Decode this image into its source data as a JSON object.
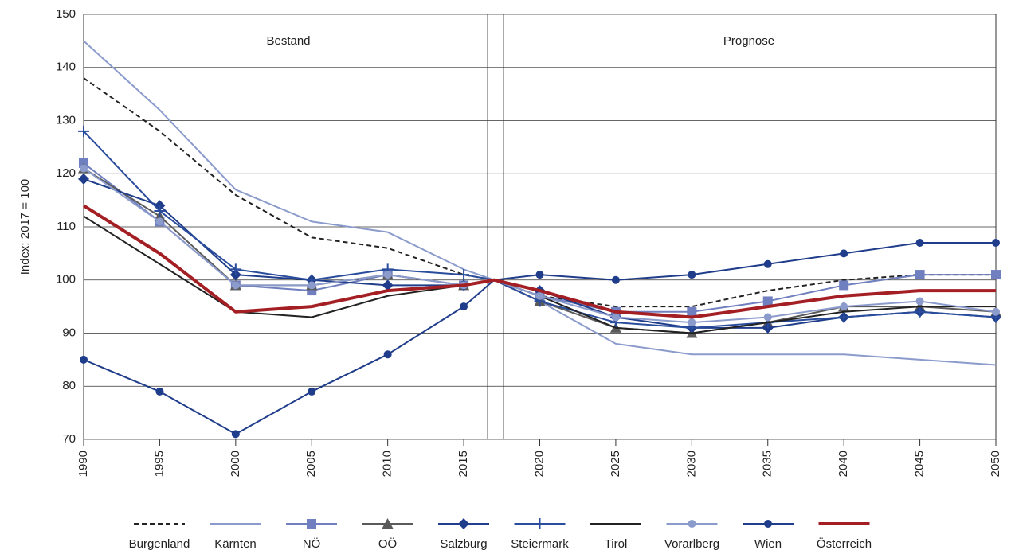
{
  "chart_data": {
    "type": "line",
    "y_label": "Index: 2017 = 100",
    "annotations": [
      "Bestand",
      "Prognose"
    ],
    "x": [
      1990,
      1995,
      2000,
      2005,
      2010,
      2015,
      2017,
      2020,
      2025,
      2030,
      2035,
      2040,
      2045,
      2050
    ],
    "xlim": [
      1990,
      2050
    ],
    "xticks": [
      1990,
      1995,
      2000,
      2005,
      2010,
      2015,
      2020,
      2025,
      2030,
      2035,
      2040,
      2045,
      2050
    ],
    "ylim": [
      70,
      150
    ],
    "yticks": [
      70,
      80,
      90,
      100,
      110,
      120,
      130,
      140,
      150
    ],
    "grid": true,
    "legend": "bottom",
    "series": [
      {
        "name": "Burgenland",
        "color": "#222222",
        "dash": true,
        "values": [
          138,
          128,
          116,
          108,
          106,
          101,
          100,
          97,
          95,
          95,
          98,
          100,
          101,
          101
        ]
      },
      {
        "name": "Kärnten",
        "color": "#8b9bcc",
        "values": [
          145,
          132,
          117,
          111,
          109,
          102,
          100,
          96,
          88,
          86,
          86,
          86,
          85,
          84
        ]
      },
      {
        "name": "NÖ",
        "color": "#6f7fbf",
        "marker": "square",
        "values": [
          122,
          111,
          99,
          98,
          101,
          99,
          100,
          97,
          94,
          94,
          96,
          99,
          101,
          101
        ]
      },
      {
        "name": "OÖ",
        "color": "#5a5a5a",
        "marker": "triangle",
        "values": [
          121,
          112,
          99,
          99,
          101,
          99,
          100,
          96,
          91,
          90,
          92,
          95,
          95,
          94
        ]
      },
      {
        "name": "Salzburg",
        "color": "#1f3d8a",
        "marker": "diamond",
        "values": [
          119,
          114,
          101,
          100,
          99,
          99,
          100,
          98,
          93,
          91,
          91,
          93,
          94,
          93
        ]
      },
      {
        "name": "Steiermark",
        "color": "#2a4c9c",
        "marker": "plus",
        "values": [
          128,
          113,
          102,
          100,
          102,
          101,
          100,
          96,
          92,
          91,
          92,
          93,
          94,
          93
        ]
      },
      {
        "name": "Tirol",
        "color": "#222222",
        "values": [
          112,
          103,
          94,
          93,
          97,
          99,
          100,
          97,
          91,
          90,
          92,
          94,
          95,
          95
        ]
      },
      {
        "name": "Vorarlberg",
        "color": "#8b9bcc",
        "marker": "circle",
        "values": [
          121,
          111,
          99,
          99,
          101,
          99,
          100,
          97,
          93,
          92,
          93,
          95,
          96,
          94
        ]
      },
      {
        "name": "Wien",
        "color": "#1f3d8a",
        "marker": "circle",
        "values": [
          85,
          79,
          71,
          79,
          86,
          95,
          100,
          101,
          100,
          101,
          103,
          105,
          107,
          107
        ]
      },
      {
        "name": "Österreich",
        "color": "#a31f24",
        "width": 4,
        "values": [
          114,
          105,
          94,
          95,
          98,
          99,
          100,
          98,
          94,
          93,
          95,
          97,
          98,
          98
        ]
      }
    ]
  }
}
